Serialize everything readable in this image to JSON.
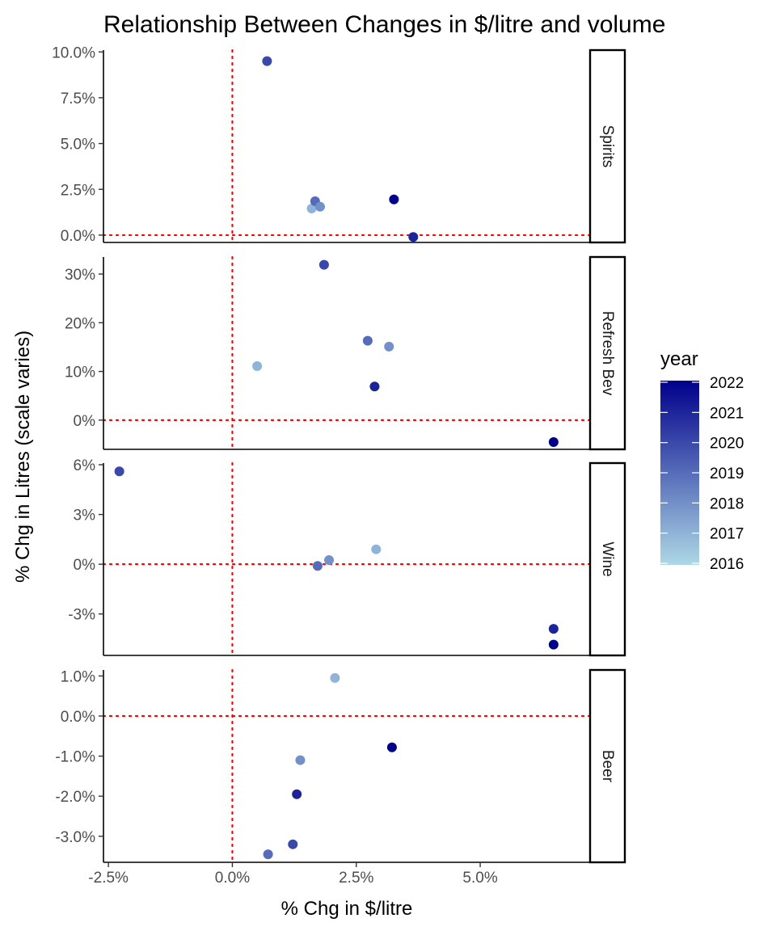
{
  "chart_data": {
    "type": "scatter",
    "title": "Relationship Between Changes in $/litre and volume",
    "xlabel": "% Chg in $/litre",
    "ylabel": "% Chg in Litres (scale varies)",
    "xlim": [
      -2.6,
      7.2
    ],
    "x_ticks": [
      -2.5,
      0,
      2.5,
      5
    ],
    "x_tick_labels": [
      "-2.5%",
      "0.0%",
      "2.5%",
      "5.0%"
    ],
    "reference_lines": {
      "x": 0,
      "y": 0,
      "color": "#ff0000",
      "style": "dotted"
    },
    "grid": false,
    "legend": {
      "title": "year",
      "placement": "right",
      "type": "colorbar",
      "min": 2016,
      "max": 2022,
      "low_color": "#add8e6",
      "high_color": "#00008b",
      "labels": [
        "2022",
        "2021",
        "2020",
        "2019",
        "2018",
        "2017",
        "2016"
      ]
    },
    "facets": [
      {
        "name": "Spirits",
        "ylim": [
          -0.4,
          10.1
        ],
        "y_ticks": [
          0,
          2.5,
          5,
          7.5,
          10
        ],
        "y_tick_labels": [
          "0.0%",
          "2.5%",
          "5.0%",
          "7.5%",
          "10.0%"
        ],
        "points": [
          {
            "x": 0.7,
            "y": 9.5,
            "year": 2020
          },
          {
            "x": 1.6,
            "y": 1.45,
            "year": 2017
          },
          {
            "x": 1.67,
            "y": 1.85,
            "year": 2019
          },
          {
            "x": 1.77,
            "y": 1.55,
            "year": 2018
          },
          {
            "x": 3.26,
            "y": 1.95,
            "year": 2022
          },
          {
            "x": 3.65,
            "y": -0.1,
            "year": 2021
          }
        ]
      },
      {
        "name": "Refresh Bev",
        "ylim": [
          -6,
          33.5
        ],
        "y_ticks": [
          0,
          10,
          20,
          30
        ],
        "y_tick_labels": [
          "0%",
          "10%",
          "20%",
          "30%"
        ],
        "points": [
          {
            "x": 0.5,
            "y": 11.1,
            "year": 2017
          },
          {
            "x": 1.85,
            "y": 31.9,
            "year": 2020
          },
          {
            "x": 2.73,
            "y": 16.3,
            "year": 2019
          },
          {
            "x": 2.87,
            "y": 6.9,
            "year": 2021
          },
          {
            "x": 3.16,
            "y": 15.1,
            "year": 2018
          },
          {
            "x": 6.48,
            "y": -4.5,
            "year": 2022
          }
        ]
      },
      {
        "name": "Wine",
        "ylim": [
          -5.5,
          6.1
        ],
        "y_ticks": [
          -3,
          0,
          3,
          6
        ],
        "y_tick_labels": [
          "-3%",
          "0%",
          "3%",
          "6%"
        ],
        "points": [
          {
            "x": -2.28,
            "y": 5.6,
            "year": 2020
          },
          {
            "x": 1.72,
            "y": -0.1,
            "year": 2019
          },
          {
            "x": 1.95,
            "y": 0.25,
            "year": 2018
          },
          {
            "x": 2.9,
            "y": 0.9,
            "year": 2017
          },
          {
            "x": 6.48,
            "y": -3.9,
            "year": 2021
          },
          {
            "x": 6.48,
            "y": -4.85,
            "year": 2022
          }
        ]
      },
      {
        "name": "Beer",
        "ylim": [
          -3.65,
          1.15
        ],
        "y_ticks": [
          -3,
          -2,
          -1,
          0,
          1
        ],
        "y_tick_labels": [
          "-3.0%",
          "-2.0%",
          "-1.0%",
          "0.0%",
          "1.0%"
        ],
        "points": [
          {
            "x": 0.72,
            "y": -3.45,
            "year": 2019
          },
          {
            "x": 1.22,
            "y": -3.2,
            "year": 2020
          },
          {
            "x": 1.3,
            "y": -1.95,
            "year": 2021
          },
          {
            "x": 1.37,
            "y": -1.1,
            "year": 2018
          },
          {
            "x": 2.07,
            "y": 0.95,
            "year": 2017
          },
          {
            "x": 3.22,
            "y": -0.78,
            "year": 2022
          }
        ]
      }
    ]
  }
}
